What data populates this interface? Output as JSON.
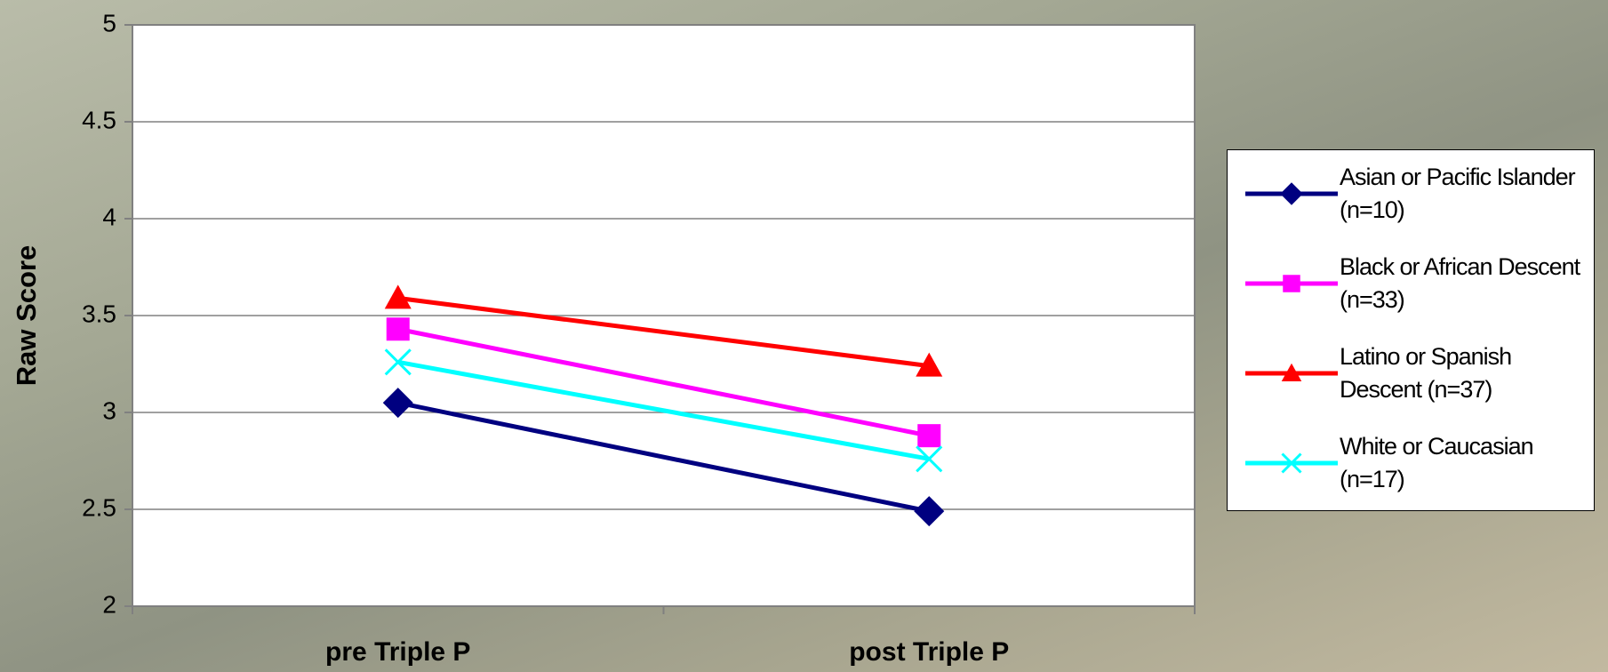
{
  "chart_data": {
    "type": "line",
    "y_label": "Raw Score",
    "categories": [
      "pre Triple P",
      "post Triple P"
    ],
    "series": [
      {
        "name": "Asian or Pacific Islander (n=10)",
        "color": "#000080",
        "marker": "diamond",
        "values": [
          3.05,
          2.49
        ]
      },
      {
        "name": "Black or African Descent (n=33)",
        "color": "#ff00ff",
        "marker": "square",
        "values": [
          3.43,
          2.88
        ]
      },
      {
        "name": "Latino or Spanish Descent (n=37)",
        "color": "#ff0000",
        "marker": "triangle",
        "values": [
          3.59,
          3.24
        ]
      },
      {
        "name": "White or Caucasian (n=17)",
        "color": "#00ffff",
        "marker": "x",
        "values": [
          3.26,
          2.76
        ]
      }
    ],
    "ylim": [
      2,
      5
    ],
    "yticks": [
      2,
      2.5,
      3,
      3.5,
      4,
      4.5,
      5
    ],
    "grid": true,
    "legend": "right"
  }
}
